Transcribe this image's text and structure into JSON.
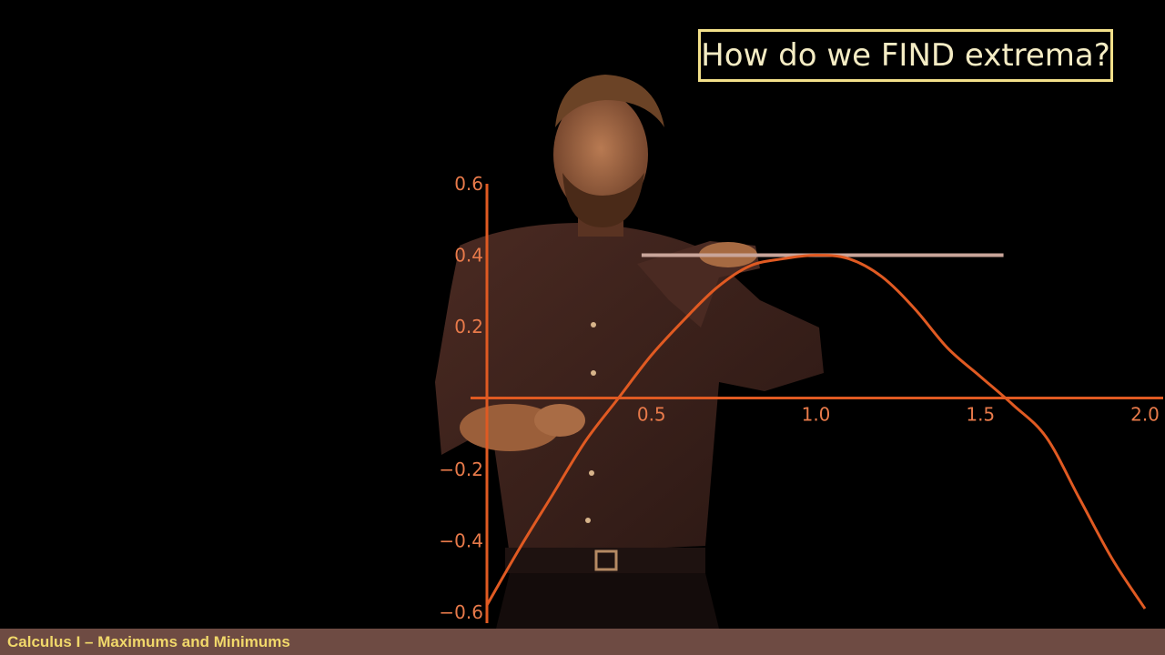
{
  "slide": {
    "title": "How do we FIND extrema?",
    "footer": "Calculus I – Maximums and Minimums"
  },
  "colors": {
    "background": "#000000",
    "curve": "#e05a22",
    "axes": "#e05a22",
    "tick_label": "#e87a4a",
    "tangent_line": "#c9a59a",
    "title_border": "#f3e08a",
    "title_text": "#f4ecc4",
    "footer_bg": "#6e4b43",
    "footer_text": "#f1d86a"
  },
  "chart_data": {
    "type": "line",
    "title": "",
    "xlabel": "",
    "ylabel": "",
    "xlim": [
      0,
      2.0
    ],
    "ylim": [
      -0.6,
      0.6
    ],
    "x_ticks": [
      "0.5",
      "1.0",
      "1.5",
      "2.0"
    ],
    "y_ticks": [
      "0.6",
      "0.4",
      "0.2",
      "-0.2",
      "-0.4",
      "-0.6"
    ],
    "series": [
      {
        "x": [
          0,
          0.1,
          0.2,
          0.3,
          0.4,
          0.5,
          0.6,
          0.7,
          0.8,
          0.9,
          1.0,
          1.1,
          1.2,
          1.3,
          1.4,
          1.5,
          1.6,
          1.7,
          1.8,
          1.9,
          2.0
        ],
        "y": [
          -0.58,
          -0.42,
          -0.27,
          -0.12,
          0.0,
          0.12,
          0.22,
          0.31,
          0.37,
          0.39,
          0.4,
          0.39,
          0.34,
          0.25,
          0.14,
          0.06,
          -0.02,
          -0.11,
          -0.28,
          -0.45,
          -0.59
        ]
      }
    ],
    "horizontal_line": {
      "y": 0.4,
      "x_start": 0.47,
      "x_end": 1.57
    },
    "grid": false,
    "legend": "none"
  }
}
